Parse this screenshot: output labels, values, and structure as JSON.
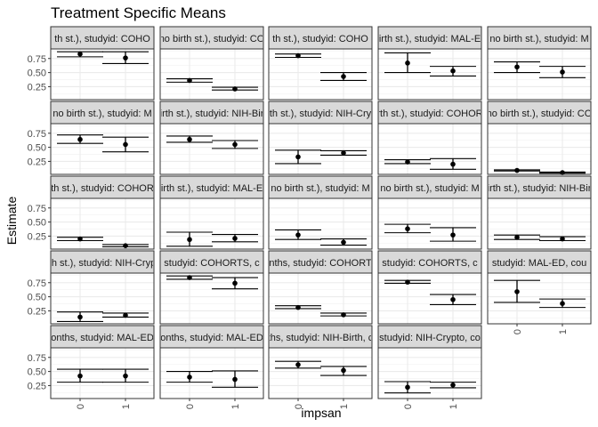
{
  "chart_data": {
    "type": "scatter",
    "title": "Treatment Specific Means",
    "xlabel": "impsan",
    "ylabel": "Estimate",
    "x_categories": [
      "0",
      "1"
    ],
    "y_ticks": [
      0.25,
      0.5,
      0.75
    ],
    "ylim": [
      0.02,
      0.92
    ],
    "grid": true,
    "panels": [
      {
        "strip": "th st.), studyid: COHO",
        "points": [
          {
            "x": "0",
            "y": 0.83,
            "lo": 0.78,
            "hi": 0.87
          },
          {
            "x": "1",
            "y": 0.76,
            "lo": 0.66,
            "hi": 0.87
          }
        ]
      },
      {
        "strip": "no birth st.), studyid: CO",
        "points": [
          {
            "x": "0",
            "y": 0.36,
            "lo": 0.33,
            "hi": 0.39
          },
          {
            "x": "1",
            "y": 0.21,
            "lo": 0.19,
            "hi": 0.24
          }
        ]
      },
      {
        "strip": "th st.), studyid: COHO",
        "points": [
          {
            "x": "0",
            "y": 0.8,
            "lo": 0.77,
            "hi": 0.83
          },
          {
            "x": "1",
            "y": 0.43,
            "lo": 0.36,
            "hi": 0.5
          }
        ]
      },
      {
        "strip": "irth st.), studyid: MAL-E",
        "points": [
          {
            "x": "0",
            "y": 0.67,
            "lo": 0.5,
            "hi": 0.85
          },
          {
            "x": "1",
            "y": 0.53,
            "lo": 0.44,
            "hi": 0.61
          }
        ]
      },
      {
        "strip": "no birth st.), studyid: M",
        "points": [
          {
            "x": "0",
            "y": 0.6,
            "lo": 0.5,
            "hi": 0.69
          },
          {
            "x": "1",
            "y": 0.51,
            "lo": 0.41,
            "hi": 0.61
          }
        ]
      },
      {
        "strip": "no birth st.), studyid: M",
        "points": [
          {
            "x": "0",
            "y": 0.64,
            "lo": 0.57,
            "hi": 0.72
          },
          {
            "x": "1",
            "y": 0.55,
            "lo": 0.42,
            "hi": 0.68
          }
        ]
      },
      {
        "strip": "irth st.), studyid: NIH-Bir",
        "points": [
          {
            "x": "0",
            "y": 0.64,
            "lo": 0.59,
            "hi": 0.7
          },
          {
            "x": "1",
            "y": 0.55,
            "lo": 0.48,
            "hi": 0.62
          }
        ]
      },
      {
        "strip": "th st.), studyid: NIH-Cry",
        "points": [
          {
            "x": "0",
            "y": 0.33,
            "lo": 0.21,
            "hi": 0.45
          },
          {
            "x": "1",
            "y": 0.4,
            "lo": 0.36,
            "hi": 0.44
          }
        ]
      },
      {
        "strip": "rth st.), studyid: COHOR",
        "points": [
          {
            "x": "0",
            "y": 0.24,
            "lo": 0.21,
            "hi": 0.28
          },
          {
            "x": "1",
            "y": 0.2,
            "lo": 0.11,
            "hi": 0.3
          }
        ]
      },
      {
        "strip": "no birth st.), studyid: CO",
        "points": [
          {
            "x": "0",
            "y": 0.09,
            "lo": 0.08,
            "hi": 0.1
          },
          {
            "x": "1",
            "y": 0.05,
            "lo": 0.04,
            "hi": 0.06
          }
        ]
      },
      {
        "strip": "th st.), studyid: COHOR",
        "points": [
          {
            "x": "0",
            "y": 0.2,
            "lo": 0.17,
            "hi": 0.23
          },
          {
            "x": "1",
            "y": 0.08,
            "lo": 0.06,
            "hi": 0.1
          }
        ]
      },
      {
        "strip": "irth st.), studyid: MAL-E",
        "points": [
          {
            "x": "0",
            "y": 0.19,
            "lo": 0.07,
            "hi": 0.32
          },
          {
            "x": "1",
            "y": 0.21,
            "lo": 0.15,
            "hi": 0.28
          }
        ]
      },
      {
        "strip": "no birth st.), studyid: M",
        "points": [
          {
            "x": "0",
            "y": 0.27,
            "lo": 0.19,
            "hi": 0.36
          },
          {
            "x": "1",
            "y": 0.14,
            "lo": 0.09,
            "hi": 0.2
          }
        ]
      },
      {
        "strip": "no birth st.), studyid: M",
        "points": [
          {
            "x": "0",
            "y": 0.38,
            "lo": 0.31,
            "hi": 0.46
          },
          {
            "x": "1",
            "y": 0.27,
            "lo": 0.16,
            "hi": 0.4
          }
        ]
      },
      {
        "strip": "irth st.), studyid: NIH-Bir",
        "points": [
          {
            "x": "0",
            "y": 0.23,
            "lo": 0.19,
            "hi": 0.27
          },
          {
            "x": "1",
            "y": 0.2,
            "lo": 0.17,
            "hi": 0.24
          }
        ]
      },
      {
        "strip": "th st.), studyid: NIH-Cryp",
        "points": [
          {
            "x": "0",
            "y": 0.14,
            "lo": 0.06,
            "hi": 0.23
          },
          {
            "x": "1",
            "y": 0.17,
            "lo": 0.14,
            "hi": 0.21
          }
        ]
      },
      {
        "strip": "studyid: COHORTS, c",
        "points": [
          {
            "x": "0",
            "y": 0.84,
            "lo": 0.81,
            "hi": 0.87
          },
          {
            "x": "1",
            "y": 0.74,
            "lo": 0.64,
            "hi": 0.84
          }
        ]
      },
      {
        "strip": "nths, studyid: COHORT",
        "points": [
          {
            "x": "0",
            "y": 0.31,
            "lo": 0.29,
            "hi": 0.34
          },
          {
            "x": "1",
            "y": 0.18,
            "lo": 0.16,
            "hi": 0.21
          }
        ]
      },
      {
        "strip": "studyid: COHORTS, c",
        "points": [
          {
            "x": "0",
            "y": 0.76,
            "lo": 0.74,
            "hi": 0.79
          },
          {
            "x": "1",
            "y": 0.45,
            "lo": 0.36,
            "hi": 0.54
          }
        ]
      },
      {
        "strip": "studyid: MAL-ED, cou",
        "points": [
          {
            "x": "0",
            "y": 0.59,
            "lo": 0.4,
            "hi": 0.79
          },
          {
            "x": "1",
            "y": 0.38,
            "lo": 0.31,
            "hi": 0.46
          }
        ]
      },
      {
        "strip": "onths, studyid: MAL-ED",
        "points": [
          {
            "x": "0",
            "y": 0.42,
            "lo": 0.31,
            "hi": 0.54
          },
          {
            "x": "1",
            "y": 0.42,
            "lo": 0.31,
            "hi": 0.54
          }
        ]
      },
      {
        "strip": "onths, studyid: MAL-ED",
        "points": [
          {
            "x": "0",
            "y": 0.4,
            "lo": 0.31,
            "hi": 0.5
          },
          {
            "x": "1",
            "y": 0.36,
            "lo": 0.22,
            "hi": 0.51
          }
        ]
      },
      {
        "strip": "nths, studyid: NIH-Birth, co",
        "points": [
          {
            "x": "0",
            "y": 0.62,
            "lo": 0.56,
            "hi": 0.68
          },
          {
            "x": "1",
            "y": 0.52,
            "lo": 0.43,
            "hi": 0.59
          }
        ]
      },
      {
        "strip": "studyid: NIH-Crypto, co",
        "points": [
          {
            "x": "0",
            "y": 0.22,
            "lo": 0.12,
            "hi": 0.32
          },
          {
            "x": "1",
            "y": 0.26,
            "lo": 0.21,
            "hi": 0.31
          }
        ]
      }
    ]
  }
}
